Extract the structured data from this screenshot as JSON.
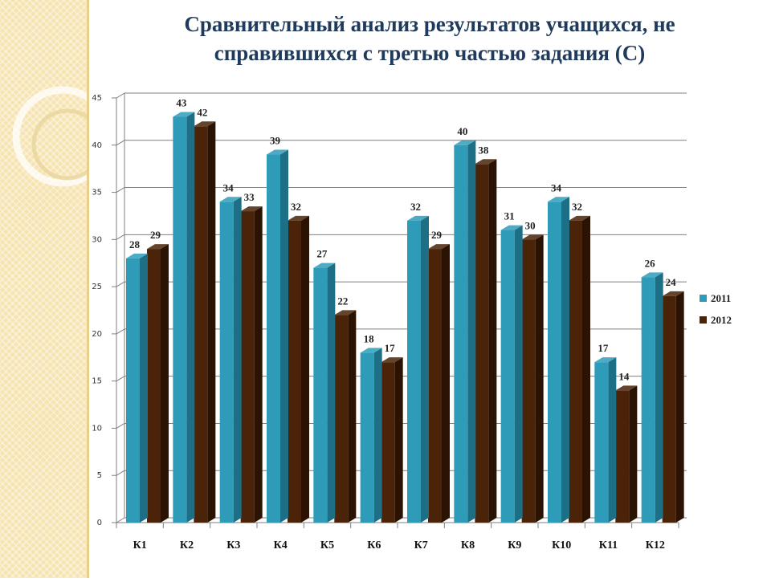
{
  "title_line1": "Сравнительный анализ результатов учащихся, не",
  "title_line2": "справившихся с третью частью задания (С)",
  "colors": {
    "series_2011": "#2e9cb8",
    "series_2011_dark": "#1d6f85",
    "series_2012": "#4a2308",
    "series_2012_dark": "#2b1304",
    "grid": "#7f7f7f",
    "band": "#f6e3b0"
  },
  "chart_data": {
    "type": "bar",
    "categories": [
      "К1",
      "К2",
      "К3",
      "К4",
      "К5",
      "К6",
      "К7",
      "К8",
      "К9",
      "К10",
      "К11",
      "К12"
    ],
    "series": [
      {
        "name": "2011",
        "values": [
          28,
          43,
          34,
          39,
          27,
          18,
          32,
          40,
          31,
          34,
          17,
          26
        ]
      },
      {
        "name": "2012",
        "values": [
          29,
          42,
          33,
          32,
          22,
          17,
          29,
          38,
          30,
          32,
          14,
          24
        ]
      }
    ],
    "yticks": [
      0,
      5,
      10,
      15,
      20,
      25,
      30,
      35,
      40,
      45
    ],
    "ylim": [
      0,
      45
    ],
    "grid": true,
    "legend": "right",
    "style": "3d-clustered-column"
  }
}
